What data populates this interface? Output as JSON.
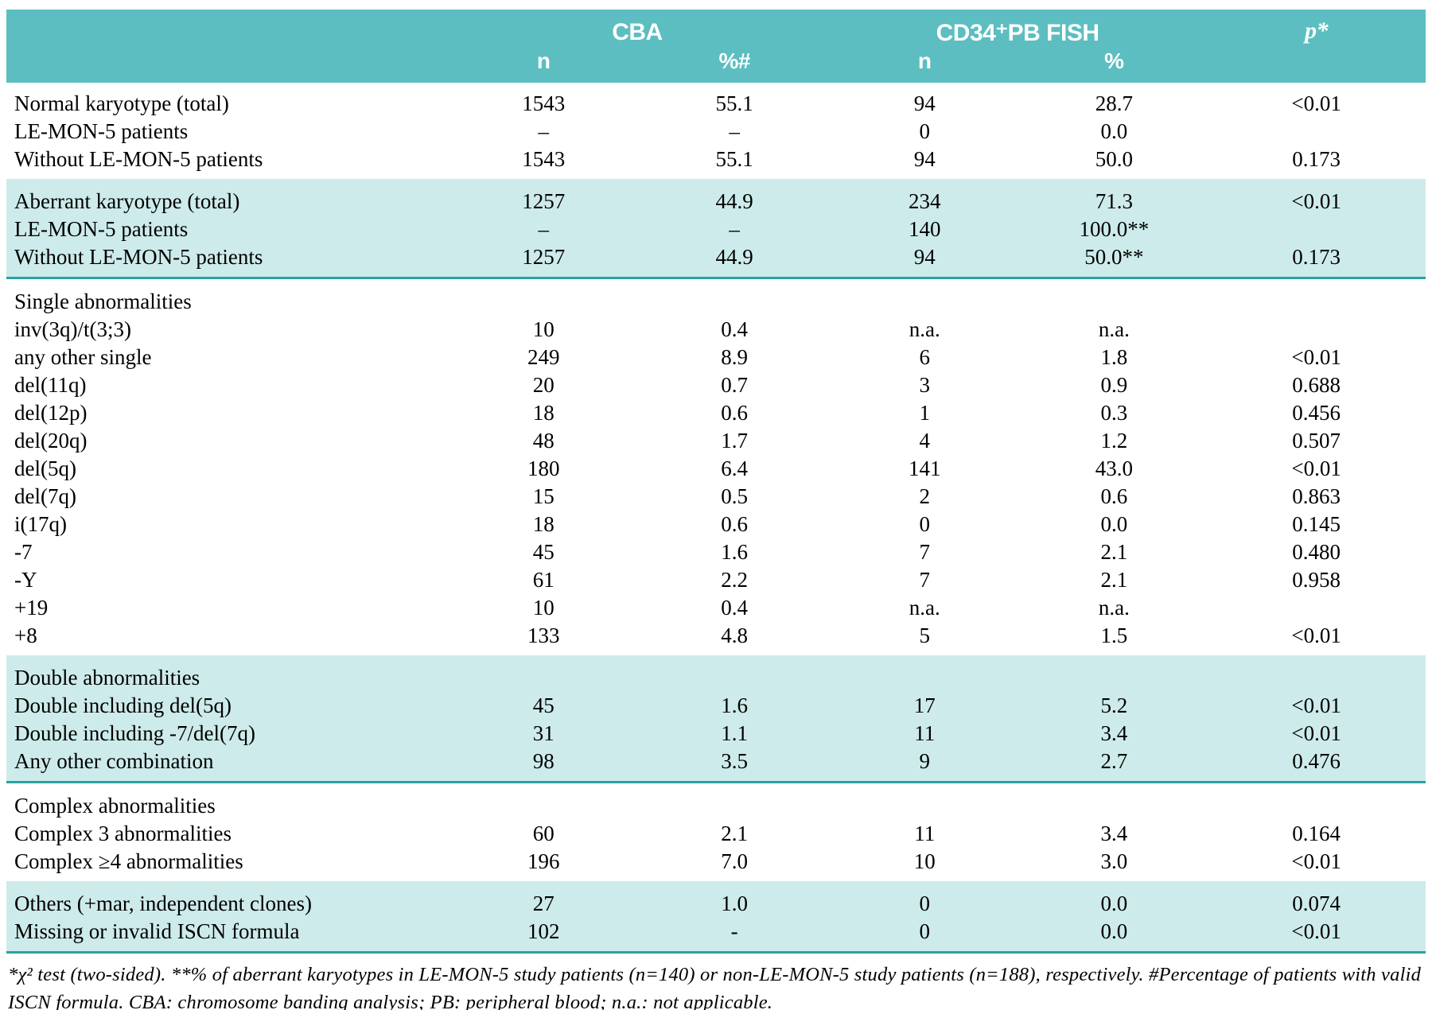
{
  "colors": {
    "header_teal": "#5cbec0",
    "shaded_row_teal": "#cdebea",
    "divider_teal": "#2ba0a3",
    "text": "#000000",
    "header_text": "#ffffff"
  },
  "header": {
    "cba_group": "CBA",
    "fish_group": "CD34⁺PB FISH",
    "p_label": "p*",
    "subheaders": [
      "n",
      "%#",
      "n",
      "%"
    ]
  },
  "sections": [
    {
      "shaded": false,
      "divider": false,
      "rows": [
        {
          "label": "Normal karyotype (total)",
          "indent": 0,
          "values": [
            "1543",
            "55.1",
            "94",
            "28.7",
            "<0.01"
          ]
        },
        {
          "label": "LE-MON-5 patients",
          "indent": 1,
          "values": [
            "–",
            "–",
            "0",
            "0.0",
            ""
          ]
        },
        {
          "label": "Without LE-MON-5 patients",
          "indent": 2,
          "values": [
            "1543",
            "55.1",
            "94",
            "50.0",
            "0.173"
          ]
        }
      ]
    },
    {
      "shaded": true,
      "divider": true,
      "rows": [
        {
          "label": "Aberrant karyotype (total)",
          "indent": 0,
          "values": [
            "1257",
            "44.9",
            "234",
            "71.3",
            "<0.01"
          ]
        },
        {
          "label": "LE-MON-5 patients",
          "indent": 1,
          "values": [
            "–",
            "–",
            "140",
            "100.0**",
            ""
          ]
        },
        {
          "label": "Without LE-MON-5 patients",
          "indent": 2,
          "values": [
            "1257",
            "44.9",
            "94",
            "50.0**",
            "0.173"
          ]
        }
      ]
    },
    {
      "shaded": false,
      "divider": false,
      "rows": [
        {
          "label": "Single abnormalities",
          "indent": 0,
          "values": [
            "",
            "",
            "",
            "",
            ""
          ]
        },
        {
          "label": "inv(3q)/t(3;3)",
          "indent": 0,
          "values": [
            "10",
            "0.4",
            "n.a.",
            "n.a.",
            ""
          ]
        },
        {
          "label": "any other single",
          "indent": 0,
          "values": [
            "249",
            "8.9",
            "6",
            "1.8",
            "<0.01"
          ]
        },
        {
          "label": "del(11q)",
          "indent": 0,
          "values": [
            "20",
            "0.7",
            "3",
            "0.9",
            "0.688"
          ]
        },
        {
          "label": "del(12p)",
          "indent": 0,
          "values": [
            "18",
            "0.6",
            "1",
            "0.3",
            "0.456"
          ]
        },
        {
          "label": "del(20q)",
          "indent": 0,
          "values": [
            "48",
            "1.7",
            "4",
            "1.2",
            "0.507"
          ]
        },
        {
          "label": "del(5q)",
          "indent": 0,
          "values": [
            "180",
            "6.4",
            "141",
            "43.0",
            "<0.01"
          ]
        },
        {
          "label": "del(7q)",
          "indent": 0,
          "values": [
            "15",
            "0.5",
            "2",
            "0.6",
            "0.863"
          ]
        },
        {
          "label": "i(17q)",
          "indent": 0,
          "values": [
            "18",
            "0.6",
            "0",
            "0.0",
            "0.145"
          ]
        },
        {
          "label": "-7",
          "indent": 0,
          "values": [
            "45",
            "1.6",
            "7",
            "2.1",
            "0.480"
          ]
        },
        {
          "label": "-Y",
          "indent": 0,
          "values": [
            "61",
            "2.2",
            "7",
            "2.1",
            "0.958"
          ]
        },
        {
          "label": "+19",
          "indent": 0,
          "values": [
            "10",
            "0.4",
            "n.a.",
            "n.a.",
            ""
          ]
        },
        {
          "label": "+8",
          "indent": 0,
          "values": [
            "133",
            "4.8",
            "5",
            "1.5",
            "<0.01"
          ]
        }
      ]
    },
    {
      "shaded": true,
      "divider": true,
      "rows": [
        {
          "label": "Double abnormalities",
          "indent": 0,
          "values": [
            "",
            "",
            "",
            "",
            ""
          ]
        },
        {
          "label": "Double including del(5q)",
          "indent": 0,
          "values": [
            "45",
            "1.6",
            "17",
            "5.2",
            "<0.01"
          ]
        },
        {
          "label": "Double including -7/del(7q)",
          "indent": 0,
          "values": [
            "31",
            "1.1",
            "11",
            "3.4",
            "<0.01"
          ]
        },
        {
          "label": "Any other combination",
          "indent": 0,
          "values": [
            "98",
            "3.5",
            "9",
            "2.7",
            "0.476"
          ]
        }
      ]
    },
    {
      "shaded": false,
      "divider": false,
      "rows": [
        {
          "label": "Complex abnormalities",
          "indent": 0,
          "values": [
            "",
            "",
            "",
            "",
            ""
          ]
        },
        {
          "label": "Complex 3 abnormalities",
          "indent": 0,
          "values": [
            "60",
            "2.1",
            "11",
            "3.4",
            "0.164"
          ]
        },
        {
          "label": "Complex ≥4 abnormalities",
          "indent": 0,
          "values": [
            "196",
            "7.0",
            "10",
            "3.0",
            "<0.01"
          ]
        }
      ]
    },
    {
      "shaded": true,
      "divider": true,
      "rows": [
        {
          "label": "Others (+mar, independent clones)",
          "indent": 0,
          "values": [
            "27",
            "1.0",
            "0",
            "0.0",
            "0.074"
          ]
        },
        {
          "label": "Missing or invalid ISCN formula",
          "indent": 0,
          "values": [
            "102",
            "-",
            "0",
            "0.0",
            "<0.01"
          ]
        }
      ]
    }
  ],
  "footnote": "*χ² test (two-sided). **% of aberrant karyotypes in LE-MON-5 study patients (n=140) or non-LE-MON-5 study patients (n=188), respectively. #Percentage of patients with valid ISCN formula. CBA: chromosome banding analysis; PB: peripheral blood; n.a.: not applicable."
}
